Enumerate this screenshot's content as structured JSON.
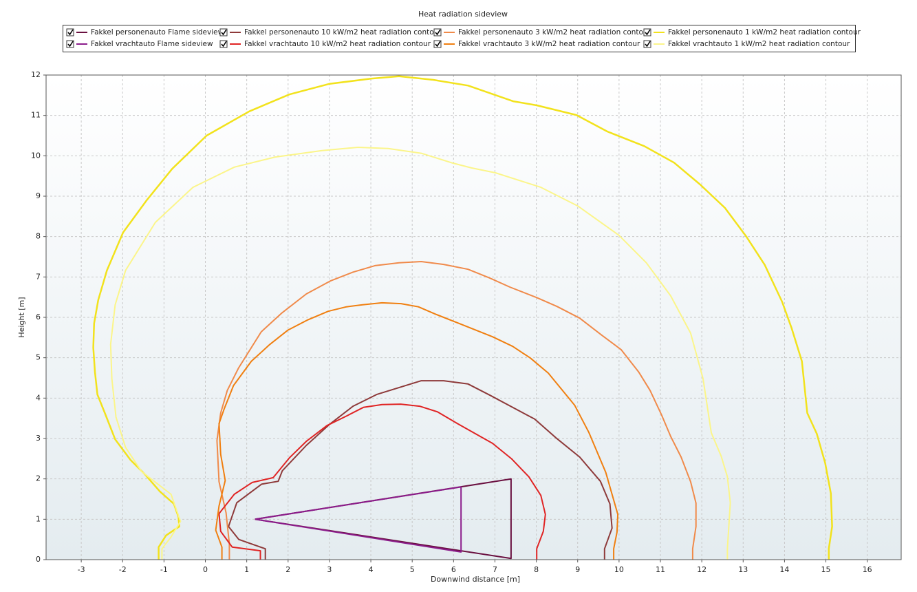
{
  "chart_data": {
    "type": "line",
    "title": "Heat radiation sideview",
    "x_label": "Downwind distance [m]",
    "y_label": "Height [m]",
    "xlim": [
      -3.85,
      16.82
    ],
    "ylim": [
      0,
      12
    ],
    "xticks": [
      -3,
      -2,
      -1,
      0,
      1,
      2,
      3,
      4,
      5,
      6,
      7,
      8,
      9,
      10,
      11,
      12,
      13,
      14,
      15,
      16
    ],
    "yticks": [
      0,
      1,
      2,
      3,
      4,
      5,
      6,
      7,
      8,
      9,
      10,
      11,
      12
    ],
    "grid": true,
    "legend": "top",
    "series": [
      {
        "name": "Fakkel personenauto Flame sideview",
        "color": "#6a1040",
        "width": 2,
        "x": [
          1.2,
          7.39,
          7.39,
          1.2
        ],
        "values": [
          1.0,
          2.0,
          0.03,
          1.0
        ]
      },
      {
        "name": "Fakkel personenauto 10 kW/m2 heat radiation contour",
        "color": "#8e3a3a",
        "width": 2,
        "x": [
          1.45,
          1.45,
          0.81,
          0.56,
          0.76,
          1.36,
          1.76,
          1.86,
          2.44,
          2.99,
          3.57,
          4.14,
          5.22,
          5.76,
          6.35,
          6.88,
          7.96,
          8.47,
          9.05,
          9.55,
          9.78,
          9.83,
          9.65,
          9.65
        ],
        "values": [
          0,
          0.27,
          0.5,
          0.82,
          1.41,
          1.87,
          1.94,
          2.2,
          2.83,
          3.34,
          3.8,
          4.09,
          4.43,
          4.43,
          4.35,
          4.07,
          3.48,
          3.02,
          2.54,
          1.94,
          1.38,
          0.78,
          0.27,
          0
        ]
      },
      {
        "name": "Fakkel personenauto 3 kW/m2 heat radiation contour",
        "color": "#f08a4a",
        "width": 2,
        "x": [
          0.58,
          0.58,
          0.5,
          0.33,
          0.28,
          0.37,
          0.53,
          0.8,
          1.35,
          1.84,
          2.44,
          3.02,
          3.57,
          4.1,
          4.68,
          5.22,
          5.76,
          6.35,
          6.88,
          7.36,
          8.01,
          8.5,
          9.05,
          9.58,
          10.05,
          10.48,
          10.75,
          11.03,
          11.25,
          11.5,
          11.73,
          11.86,
          11.86,
          11.78,
          11.78
        ],
        "values": [
          0,
          0.39,
          1.16,
          1.93,
          2.95,
          3.63,
          4.19,
          4.74,
          5.64,
          6.1,
          6.58,
          6.9,
          7.12,
          7.28,
          7.35,
          7.38,
          7.31,
          7.19,
          6.97,
          6.75,
          6.49,
          6.27,
          5.98,
          5.56,
          5.2,
          4.64,
          4.19,
          3.58,
          3.05,
          2.54,
          1.93,
          1.4,
          0.82,
          0.27,
          0
        ]
      },
      {
        "name": "Fakkel personenauto 1 kW/m2 heat radiation contour",
        "color": "#f2e21c",
        "width": 2.5,
        "x": [
          -1.13,
          -1.13,
          -0.95,
          -0.63,
          -0.65,
          -0.76,
          -1.1,
          -1.45,
          -1.81,
          -2.18,
          -2.43,
          -2.61,
          -2.67,
          -2.71,
          -2.69,
          -2.59,
          -2.38,
          -1.99,
          -1.41,
          -0.8,
          0.03,
          1.06,
          2.03,
          2.99,
          4.0,
          4.68,
          5.51,
          6.35,
          7.44,
          8.01,
          8.97,
          9.72,
          10.61,
          11.33,
          11.96,
          12.56,
          13.07,
          13.52,
          13.94,
          14.17,
          14.42,
          14.55,
          14.78,
          14.98,
          15.12,
          15.15,
          15.07,
          15.07
        ],
        "values": [
          0,
          0.31,
          0.6,
          0.82,
          1.06,
          1.38,
          1.69,
          2.1,
          2.47,
          2.98,
          3.63,
          4.09,
          4.65,
          5.25,
          5.85,
          6.43,
          7.16,
          8.1,
          8.91,
          9.68,
          10.5,
          11.1,
          11.52,
          11.78,
          11.91,
          11.97,
          11.88,
          11.74,
          11.35,
          11.25,
          11.01,
          10.6,
          10.24,
          9.83,
          9.29,
          8.71,
          8.01,
          7.3,
          6.39,
          5.74,
          4.91,
          3.63,
          3.12,
          2.4,
          1.64,
          0.82,
          0.27,
          0
        ]
      },
      {
        "name": "Fakkel vrachtauto Flame sideview",
        "color": "#8b1c8b",
        "width": 2,
        "x": [
          1.2,
          6.18,
          6.18,
          1.2
        ],
        "values": [
          1.0,
          1.8,
          0.19,
          1.0
        ]
      },
      {
        "name": "Fakkel vrachtauto 10 kW/m2 heat radiation contour",
        "color": "#e02424",
        "width": 2,
        "x": [
          1.33,
          1.33,
          0.65,
          0.37,
          0.33,
          0.7,
          1.13,
          1.64,
          2.03,
          2.44,
          2.94,
          3.42,
          3.82,
          4.27,
          4.72,
          5.18,
          5.61,
          6.11,
          6.94,
          7.41,
          7.82,
          8.11,
          8.22,
          8.17,
          8.01,
          8.01
        ],
        "values": [
          0,
          0.22,
          0.31,
          0.7,
          1.14,
          1.62,
          1.91,
          2.03,
          2.52,
          2.93,
          3.32,
          3.56,
          3.77,
          3.84,
          3.85,
          3.8,
          3.66,
          3.36,
          2.88,
          2.49,
          2.05,
          1.59,
          1.12,
          0.7,
          0.27,
          0
        ]
      },
      {
        "name": "Fakkel vrachtauto 3 kW/m2 heat radiation contour",
        "color": "#f07f10",
        "width": 2,
        "x": [
          0.4,
          0.4,
          0.25,
          0.33,
          0.48,
          0.37,
          0.33,
          0.45,
          0.68,
          1.11,
          1.56,
          1.99,
          2.46,
          2.97,
          3.41,
          3.8,
          4.27,
          4.73,
          5.15,
          5.56,
          6.13,
          6.94,
          7.43,
          7.86,
          8.29,
          8.6,
          8.93,
          9.27,
          9.68,
          9.97,
          9.95,
          9.87,
          9.87
        ],
        "values": [
          0,
          0.31,
          0.73,
          1.33,
          1.96,
          2.61,
          3.37,
          3.72,
          4.31,
          4.91,
          5.33,
          5.68,
          5.93,
          6.15,
          6.26,
          6.31,
          6.36,
          6.34,
          6.26,
          6.08,
          5.85,
          5.52,
          5.28,
          4.99,
          4.62,
          4.23,
          3.82,
          3.15,
          2.16,
          1.12,
          0.68,
          0.27,
          0
        ]
      },
      {
        "name": "Fakkel vrachtauto 1 kW/m2 heat radiation contour",
        "color": "#fbf58a",
        "width": 2,
        "x": [
          -1.05,
          -1.05,
          -0.83,
          -0.6,
          -0.83,
          -1.54,
          -1.93,
          -2.16,
          -2.26,
          -2.29,
          -2.18,
          -1.93,
          -1.21,
          -0.3,
          0.7,
          1.69,
          2.82,
          3.69,
          4.42,
          5.23,
          5.98,
          6.43,
          7.01,
          8.11,
          9.0,
          10.0,
          10.66,
          11.25,
          11.73,
          12.03,
          12.23,
          12.47,
          12.62,
          12.69,
          12.62,
          12.62
        ],
        "values": [
          0,
          0.27,
          0.56,
          0.95,
          1.62,
          2.18,
          2.78,
          3.53,
          4.48,
          5.33,
          6.31,
          7.16,
          8.35,
          9.22,
          9.72,
          9.97,
          10.13,
          10.21,
          10.18,
          10.06,
          9.82,
          9.7,
          9.58,
          9.22,
          8.76,
          8.03,
          7.35,
          6.53,
          5.61,
          4.48,
          3.14,
          2.56,
          2.05,
          1.41,
          0.27,
          0
        ]
      }
    ]
  }
}
